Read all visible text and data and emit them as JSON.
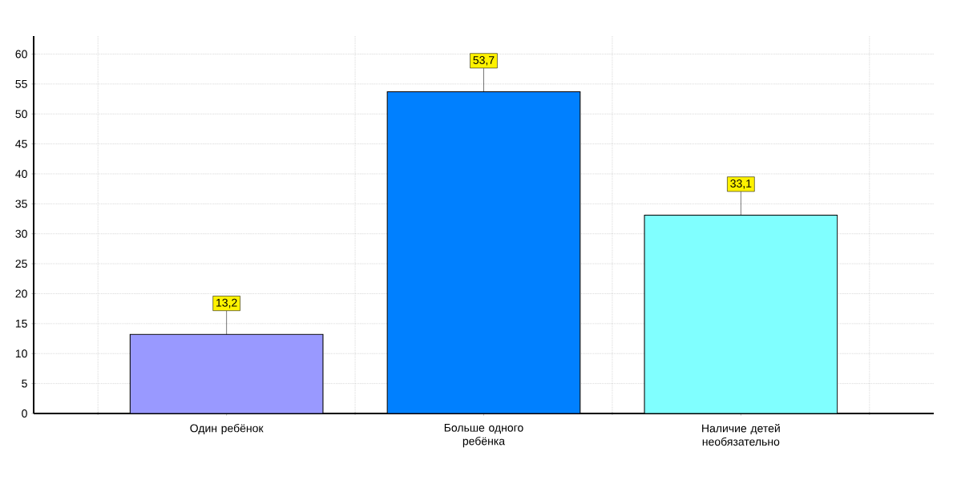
{
  "chart_data": {
    "type": "bar",
    "categories": [
      "Один ребёнок",
      "Больше одного ребёнка",
      "Наличие детей необязательно"
    ],
    "values": [
      13.2,
      53.7,
      33.1
    ],
    "colors": [
      "#9999ff",
      "#0080ff",
      "#80ffff"
    ],
    "value_labels": [
      "13,2",
      "53,7",
      "33,1"
    ],
    "ylim": [
      0,
      63
    ],
    "yticks": [
      0,
      5,
      10,
      15,
      20,
      25,
      30,
      35,
      40,
      45,
      50,
      55,
      60
    ],
    "grid": true
  }
}
